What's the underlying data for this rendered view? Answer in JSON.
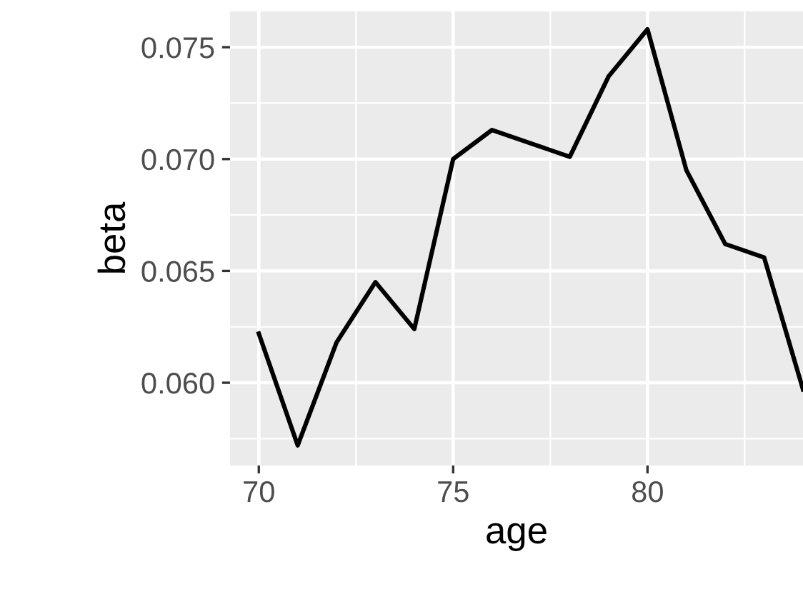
{
  "chart_data": {
    "type": "line",
    "xlabel": "age",
    "ylabel": "beta",
    "x": [
      70,
      71,
      72,
      73,
      74,
      75,
      76,
      77,
      78,
      79,
      80,
      81,
      82,
      83,
      84
    ],
    "series": [
      {
        "color": "#000000",
        "values": [
          0.0622,
          0.0572,
          0.0618,
          0.0645,
          0.0624,
          0.07,
          0.0713,
          0.0707,
          0.0701,
          0.0737,
          0.0758,
          0.0695,
          0.0662,
          0.0656,
          0.0597
        ]
      }
    ],
    "xlim": [
      69.26,
      84
    ],
    "ylim": [
      0.0563,
      0.0766
    ],
    "xticks": [
      70,
      75,
      80
    ],
    "yticks": [
      {
        "value": 0.06,
        "label": "0.060"
      },
      {
        "value": 0.065,
        "label": "0.065"
      },
      {
        "value": 0.07,
        "label": "0.070"
      },
      {
        "value": 0.075,
        "label": "0.075"
      }
    ],
    "grid": true,
    "line_style": "solid",
    "marker": "none"
  }
}
